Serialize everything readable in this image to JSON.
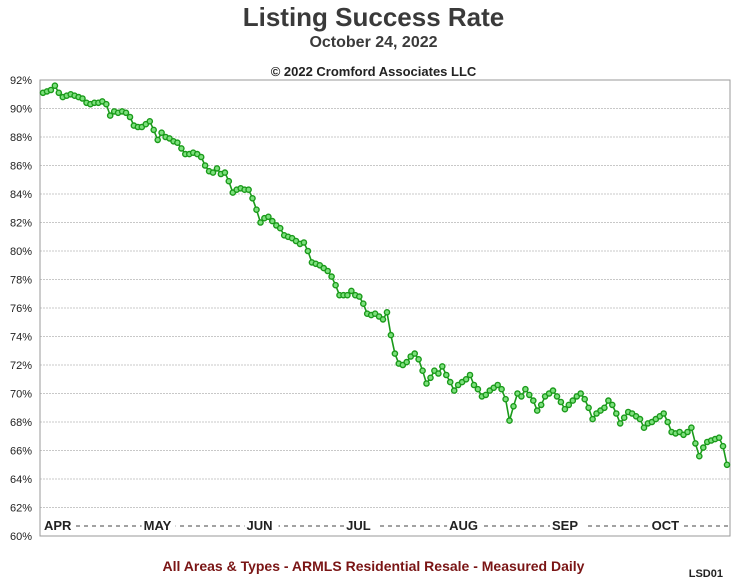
{
  "title": "Listing Success Rate",
  "subtitle": "October 24, 2022",
  "copyright": "© 2022 Cromford Associates LLC",
  "footer": "All Areas & Types - ARMLS Residential Resale - Measured Daily",
  "chart_code": "LSD01",
  "colors": {
    "line": "#1a9a1a",
    "marker_fill": "#7de07d",
    "grid": "#c8c8c8",
    "text": "#222222"
  },
  "chart_data": {
    "type": "line",
    "title": "Listing Success Rate",
    "xlabel": "",
    "ylabel": "",
    "ylim": [
      60,
      92
    ],
    "yticks": [
      "60%",
      "62%",
      "64%",
      "66%",
      "68%",
      "70%",
      "72%",
      "74%",
      "76%",
      "78%",
      "80%",
      "82%",
      "84%",
      "86%",
      "88%",
      "90%",
      "92%"
    ],
    "month_labels": [
      {
        "label": "APR",
        "day": 0
      },
      {
        "label": "MAY",
        "day": 30
      },
      {
        "label": "JUN",
        "day": 61
      },
      {
        "label": "JUL",
        "day": 91
      },
      {
        "label": "AUG",
        "day": 122
      },
      {
        "label": "SEP",
        "day": 153
      },
      {
        "label": "OCT",
        "day": 183
      }
    ],
    "x_range_days": [
      0,
      206
    ],
    "grid": true,
    "legend": "none",
    "series": [
      {
        "values": [
          91.1,
          91.2,
          91.3,
          91.6,
          91.1,
          90.8,
          90.9,
          91.0,
          90.9,
          90.8,
          90.7,
          90.4,
          90.3,
          90.4,
          90.4,
          90.5,
          90.3,
          89.5,
          89.8,
          89.7,
          89.8,
          89.7,
          89.4,
          88.8,
          88.7,
          88.7,
          88.9,
          89.1,
          88.5,
          87.8,
          88.3,
          88.0,
          87.9,
          87.7,
          87.6,
          87.2,
          86.8,
          86.8,
          86.9,
          86.8,
          86.6,
          86.0,
          85.6,
          85.5,
          85.8,
          85.4,
          85.5,
          84.9,
          84.1,
          84.3,
          84.4,
          84.3,
          84.3,
          83.7,
          82.9,
          82.0,
          82.3,
          82.4,
          82.1,
          81.8,
          81.6,
          81.1,
          81.0,
          80.9,
          80.7,
          80.5,
          80.6,
          80.0,
          79.2,
          79.1,
          79.0,
          78.8,
          78.6,
          78.2,
          77.6,
          76.9,
          76.9,
          76.9,
          77.2,
          76.9,
          76.8,
          76.3,
          75.6,
          75.5,
          75.6,
          75.4,
          75.2,
          75.7,
          74.1,
          72.8,
          72.1,
          72.0,
          72.2,
          72.6,
          72.8,
          72.4,
          71.6,
          70.7,
          71.1,
          71.6,
          71.4,
          71.9,
          71.3,
          70.8,
          70.2,
          70.6,
          70.8,
          71.0,
          71.3,
          70.6,
          70.3,
          69.8,
          69.9,
          70.2,
          70.4,
          70.6,
          70.3,
          69.6,
          68.1,
          69.1,
          70.0,
          69.8,
          70.3,
          69.9,
          69.5,
          68.8,
          69.2,
          69.8,
          70.0,
          70.2,
          69.8,
          69.4,
          68.9,
          69.2,
          69.5,
          69.8,
          70.0,
          69.6,
          69.0,
          68.2,
          68.6,
          68.8,
          69.0,
          69.5,
          69.2,
          68.6,
          67.9,
          68.3,
          68.7,
          68.6,
          68.4,
          68.2,
          67.6,
          67.9,
          68.0,
          68.2,
          68.4,
          68.6,
          68.0,
          67.3,
          67.2,
          67.3,
          67.1,
          67.3,
          67.6,
          66.5,
          65.6,
          66.2,
          66.6,
          66.7,
          66.8,
          66.9,
          66.3,
          65.0
        ]
      }
    ]
  }
}
